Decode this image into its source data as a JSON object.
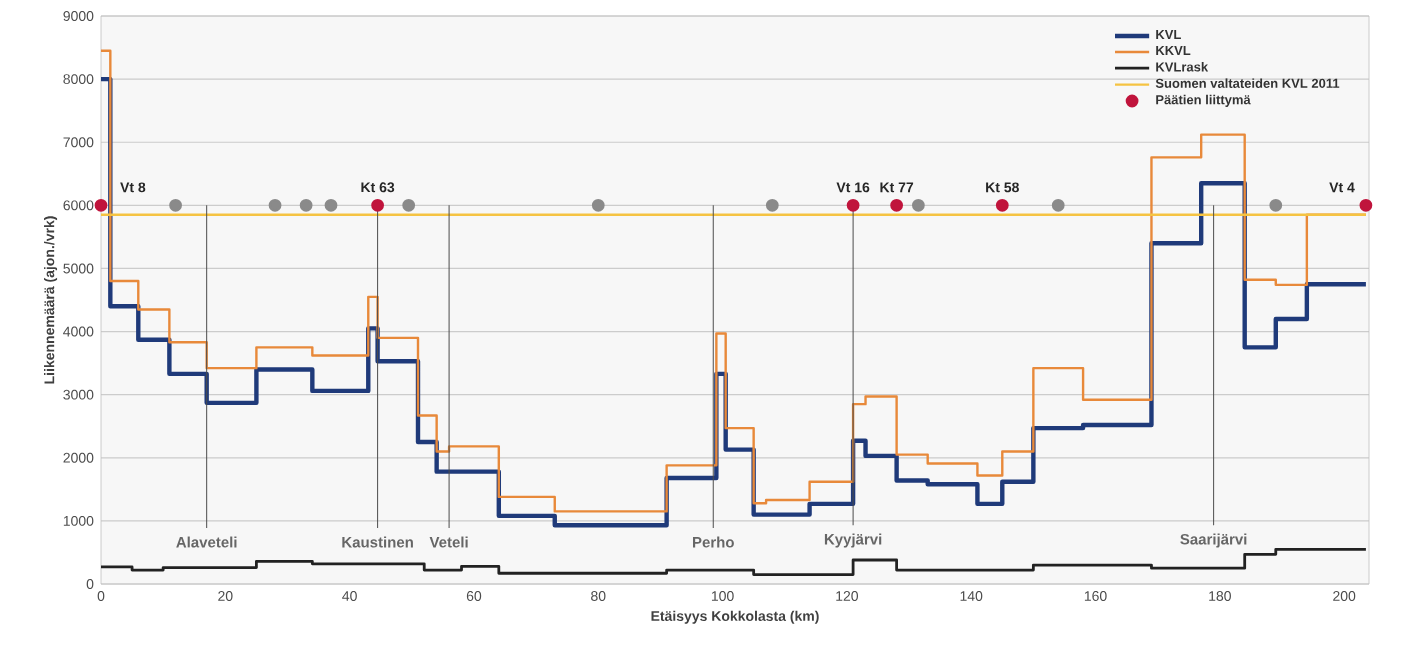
{
  "chart_data": {
    "type": "step",
    "xlabel": "Etäisyys Kokkolasta (km)",
    "ylabel": "Liikennemäärä (ajon./vrk)",
    "xlim": [
      0,
      204
    ],
    "ylim": [
      0,
      9000
    ],
    "xticks": [
      0,
      20,
      40,
      60,
      80,
      100,
      120,
      140,
      160,
      180,
      200
    ],
    "yticks": [
      0,
      1000,
      2000,
      3000,
      4000,
      5000,
      6000,
      7000,
      8000,
      9000
    ],
    "grid": "y",
    "legend": "top right",
    "series": [
      {
        "name": "KVL",
        "color": "#1f3a7a",
        "x": [
          0,
          1.5,
          6,
          11,
          17,
          25,
          34,
          43,
          44.5,
          51,
          54,
          64,
          73,
          91,
          99,
          100.5,
          105,
          114,
          121,
          123,
          128,
          133,
          141,
          145,
          150,
          158,
          169,
          177,
          184,
          189,
          194,
          203.5
        ],
        "values": [
          8000,
          4400,
          3870,
          3330,
          2870,
          3400,
          3060,
          4050,
          3530,
          2250,
          1780,
          1080,
          930,
          1680,
          3330,
          2130,
          1100,
          1270,
          2270,
          2030,
          1640,
          1580,
          1270,
          1620,
          2470,
          2520,
          5400,
          6350,
          3750,
          4200,
          4750,
          4750
        ]
      },
      {
        "name": "KKVL",
        "color": "#e8893a",
        "x": [
          0,
          1.5,
          6,
          11,
          17,
          25,
          34,
          43,
          44.5,
          51,
          54,
          56,
          64,
          73,
          91,
          99,
          100.5,
          105,
          107,
          114,
          121,
          123,
          128,
          133,
          141,
          145,
          150,
          158,
          169,
          177,
          184,
          189,
          194,
          203.5
        ],
        "values": [
          8450,
          4800,
          4350,
          3830,
          3420,
          3750,
          3620,
          4550,
          3900,
          2670,
          2100,
          2180,
          1380,
          1150,
          1880,
          3970,
          2470,
          1280,
          1330,
          1620,
          2850,
          2970,
          2050,
          1910,
          1720,
          2100,
          3420,
          2920,
          6760,
          7120,
          4820,
          4740,
          5850,
          5850
        ]
      },
      {
        "name": "KVLrask",
        "color": "#222222",
        "x": [
          0,
          5,
          10,
          25,
          34,
          52,
          58,
          64,
          91,
          105,
          121,
          128,
          150,
          169,
          184,
          189,
          203.5
        ],
        "values": [
          270,
          220,
          260,
          360,
          320,
          220,
          280,
          170,
          220,
          150,
          380,
          220,
          300,
          250,
          470,
          550,
          550
        ]
      },
      {
        "name": "Suomen valtateiden KVL 2011",
        "color": "#f5c342",
        "type": "line",
        "x": [
          0,
          203.5
        ],
        "values": [
          5850,
          5850
        ]
      },
      {
        "name": "Päätien liittymä",
        "color": "#c0143c",
        "type": "scatter",
        "marker": "circle",
        "x": [
          0,
          44.5,
          121,
          128,
          145,
          203.5
        ],
        "values": [
          6000,
          6000,
          6000,
          6000,
          6000,
          6000
        ]
      },
      {
        "color": "#8a8a8a",
        "type": "scatter",
        "marker": "circle",
        "x": [
          12,
          28,
          33,
          37,
          49.5,
          80,
          108,
          131.5,
          154,
          189
        ],
        "values": [
          6000,
          6000,
          6000,
          6000,
          6000,
          6000,
          6000,
          6000,
          6000,
          6000
        ]
      }
    ],
    "annotations": [
      {
        "text": "Vt 8",
        "x": 0,
        "y": 6000
      },
      {
        "text": "Kt 63",
        "x": 44.5,
        "y": 6000
      },
      {
        "text": "Vt 16",
        "x": 121,
        "y": 6000
      },
      {
        "text": "Kt 77",
        "x": 128,
        "y": 6000
      },
      {
        "text": "Kt 58",
        "x": 145,
        "y": 6000
      },
      {
        "text": "Vt 4",
        "x": 203.5,
        "y": 6000
      }
    ],
    "ref_lines": [
      {
        "axis": "x",
        "value": 17,
        "label": "Alaveteli"
      },
      {
        "axis": "x",
        "value": 44.5,
        "label": "Kaustinen"
      },
      {
        "axis": "x",
        "value": 56,
        "label": "Veteli"
      },
      {
        "axis": "x",
        "value": 98.5,
        "label": "Perho"
      },
      {
        "axis": "x",
        "value": 121,
        "label": "Kyyjärvi"
      },
      {
        "axis": "x",
        "value": 179,
        "label": "Saarijärvi"
      }
    ]
  }
}
